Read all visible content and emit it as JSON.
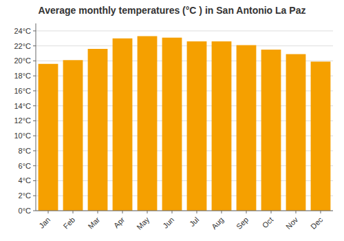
{
  "chart_data": {
    "type": "bar",
    "title": "Average monthly temperatures (°C ) in San Antonio La Paz",
    "categories": [
      "Jan",
      "Feb",
      "Mar",
      "Apr",
      "May",
      "Jun",
      "Jul",
      "Aug",
      "Sep",
      "Oct",
      "Nov",
      "Dec"
    ],
    "values": [
      19.6,
      20.1,
      21.6,
      23.0,
      23.3,
      23.1,
      22.6,
      22.6,
      22.1,
      21.5,
      20.9,
      19.9
    ],
    "color": "#F5A000",
    "ylim": [
      0,
      25
    ],
    "yticks": [
      {
        "value": 0,
        "label": "0°C"
      },
      {
        "value": 2,
        "label": "2°C"
      },
      {
        "value": 4,
        "label": "4°C"
      },
      {
        "value": 6,
        "label": "6°C"
      },
      {
        "value": 8,
        "label": "8°C"
      },
      {
        "value": 10,
        "label": "10°C"
      },
      {
        "value": 12,
        "label": "12°C"
      },
      {
        "value": 14,
        "label": "14°C"
      },
      {
        "value": 16,
        "label": "16°C"
      },
      {
        "value": 18,
        "label": "18°C"
      },
      {
        "value": 20,
        "label": "20°C"
      },
      {
        "value": 22,
        "label": "22°C"
      },
      {
        "value": 24,
        "label": "24°C"
      }
    ],
    "grid": true
  }
}
